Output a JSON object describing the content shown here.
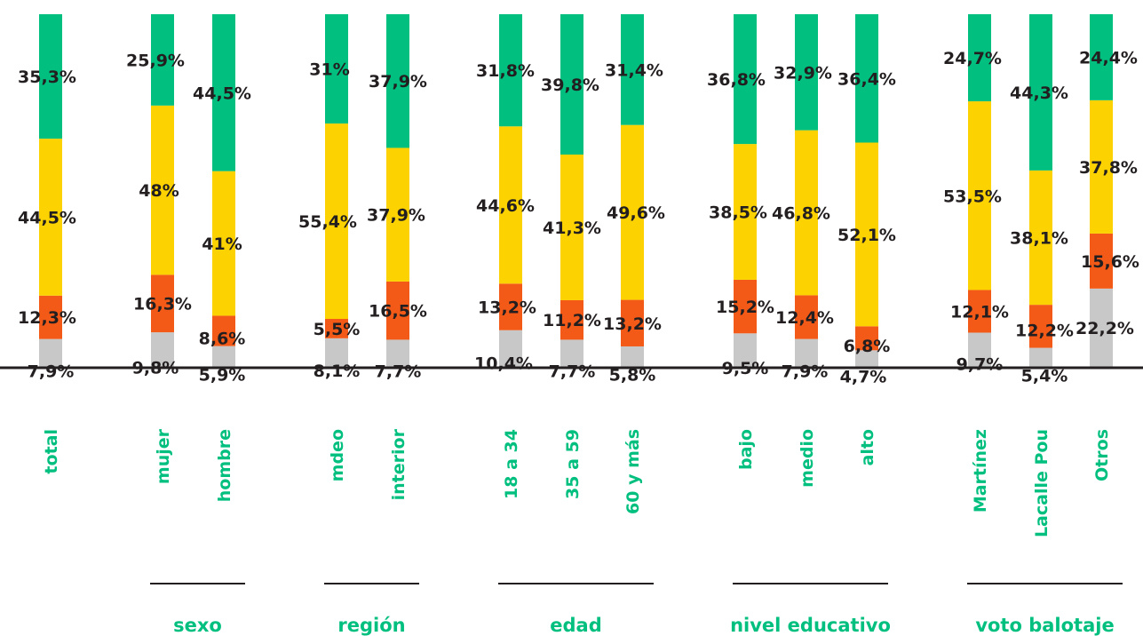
{
  "chart_data": {
    "type": "bar",
    "stacked": true,
    "orientation": "vertical",
    "ylim": [
      0,
      100
    ],
    "value_suffix": "%",
    "colors": {
      "gray": "#c8c8c8",
      "orange": "#f45a17",
      "yellow": "#fcd200",
      "green": "#00bf7f",
      "category_text": "#00bf7f",
      "value_text": "#231f20",
      "axis": "#231f20"
    },
    "categories": [
      "total",
      "mujer",
      "hombre",
      "mdeo",
      "interior",
      "18 a 34",
      "35 a 59",
      "60 y más",
      "bajo",
      "medio",
      "alto",
      "Martínez",
      "Lacalle Pou",
      "Otros"
    ],
    "series": [
      {
        "color": "gray",
        "values": [
          7.9,
          9.8,
          5.9,
          8.1,
          7.7,
          10.4,
          7.7,
          5.8,
          9.5,
          7.9,
          4.7,
          9.7,
          5.4,
          22.2
        ],
        "labels": [
          "7,9%",
          "9,8%",
          "5,9%",
          "8,1%",
          "7,7%",
          "10,4%",
          "7,7%",
          "5,8%",
          "9,5%",
          "7,9%",
          "4,7%",
          "9,7%",
          "5,4%",
          "22,2%"
        ]
      },
      {
        "color": "orange",
        "values": [
          12.3,
          16.3,
          8.6,
          5.5,
          16.5,
          13.2,
          11.2,
          13.2,
          15.2,
          12.4,
          6.8,
          12.1,
          12.2,
          15.6
        ],
        "labels": [
          "12,3%",
          "16,3%",
          "8,6%",
          "5,5%",
          "16,5%",
          "13,2%",
          "11,2%",
          "13,2%",
          "15,2%",
          "12,4%",
          "6,8%",
          "12,1%",
          "12,2%",
          "15,6%"
        ]
      },
      {
        "color": "yellow",
        "values": [
          44.5,
          48,
          41,
          55.4,
          37.9,
          44.6,
          41.3,
          49.6,
          38.5,
          46.8,
          52.1,
          53.5,
          38.1,
          37.8
        ],
        "labels": [
          "44,5%",
          "48%",
          "41%",
          "55,4%",
          "37,9%",
          "44,6%",
          "41,3%",
          "49,6%",
          "38,5%",
          "46,8%",
          "52,1%",
          "53,5%",
          "38,1%",
          "37,8%"
        ]
      },
      {
        "color": "green",
        "values": [
          35.3,
          25.9,
          44.5,
          31,
          37.9,
          31.8,
          39.8,
          31.4,
          36.8,
          32.9,
          36.4,
          24.7,
          44.3,
          24.4
        ],
        "labels": [
          "35,3%",
          "25,9%",
          "44,5%",
          "31%",
          "37,9%",
          "31,8%",
          "39,8%",
          "31,4%",
          "36,8%",
          "32,9%",
          "36,4%",
          "24,7%",
          "44,3%",
          "24,4%"
        ]
      }
    ],
    "groups": [
      {
        "label": "sexo",
        "members": [
          1,
          2
        ]
      },
      {
        "label": "región",
        "members": [
          3,
          4
        ]
      },
      {
        "label": "edad",
        "members": [
          5,
          6,
          7
        ]
      },
      {
        "label": "nivel educativo",
        "members": [
          8,
          9,
          10
        ]
      },
      {
        "label": "voto balotaje",
        "members": [
          11,
          12,
          13
        ]
      }
    ]
  }
}
